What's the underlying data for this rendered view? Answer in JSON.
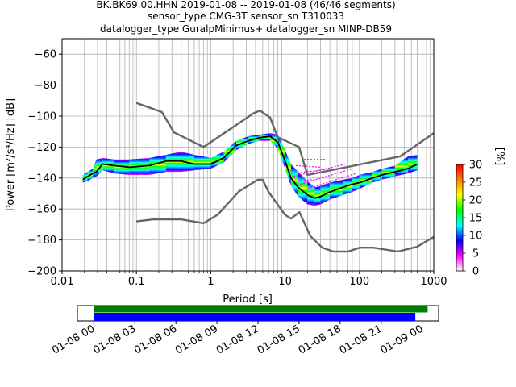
{
  "header": {
    "line1": "BK.BK69.00.HHN   2019-01-08 -- 2019-01-08  (46/46 segments)",
    "line2": "sensor_type CMG-3T sensor_sn T310033",
    "line3": "datalogger_type GuralpMinimus+ datalogger_sn MINP-DB59"
  },
  "chart_data": [
    {
      "type": "heatmap",
      "title": "",
      "xlabel": "Period [s]",
      "ylabel": "Power [m²/s⁴/Hz] [dB]",
      "xscale": "log",
      "xlim": [
        0.01,
        1000
      ],
      "ylim": [
        -200,
        -50
      ],
      "x_ticks": [
        0.01,
        0.1,
        1,
        10,
        100,
        1000
      ],
      "x_tick_labels": [
        "0.01",
        "0.1",
        "1",
        "10",
        "100",
        "1000"
      ],
      "y_ticks": [
        -200,
        -180,
        -160,
        -140,
        -120,
        -100,
        -80,
        -60
      ],
      "y_tick_labels": [
        "−200",
        "−180",
        "−160",
        "−140",
        "−120",
        "−100",
        "−80",
        "−60"
      ],
      "grid": true,
      "colorbar": {
        "label": "[%]",
        "range": [
          0,
          30
        ],
        "ticks": [
          0,
          5,
          10,
          15,
          20,
          25,
          30
        ],
        "colors": [
          "#ffffff",
          "#ff00ff",
          "#0000ff",
          "#00ffff",
          "#00ff00",
          "#ffff00",
          "#ff8000",
          "#ff0000"
        ]
      },
      "series": [
        {
          "name": "noise_model_high",
          "color": "#666666",
          "x": [
            0.1,
            0.22,
            0.32,
            0.8,
            3.8,
            4.6,
            6.3,
            7.9,
            15.4,
            20,
            354.8,
            1000
          ],
          "y": [
            -91.5,
            -97.4,
            -110.5,
            -120,
            -98,
            -96.5,
            -101,
            -113.5,
            -120,
            -138,
            -126,
            -111
          ]
        },
        {
          "name": "noise_model_low",
          "color": "#666666",
          "x": [
            0.1,
            0.17,
            0.4,
            0.8,
            1.24,
            2.4,
            4.3,
            5,
            6,
            10,
            12,
            15.6,
            21.9,
            31.6,
            45,
            70,
            101,
            154,
            328,
            600,
            1000
          ],
          "y": [
            -168,
            -166.7,
            -166.7,
            -169.2,
            -163.7,
            -148.6,
            -141.1,
            -141.1,
            -149,
            -163.8,
            -166.2,
            -162.1,
            -177.5,
            -185,
            -187.5,
            -187.5,
            -185,
            -185,
            -187.5,
            -184.4,
            -178
          ]
        },
        {
          "name": "mode",
          "color": "#000000",
          "x": [
            0.019,
            0.022,
            0.026,
            0.029,
            0.035,
            0.05,
            0.08,
            0.15,
            0.25,
            0.4,
            0.6,
            1.0,
            1.5,
            2.2,
            3.2,
            4.5,
            6.3,
            8,
            10,
            12,
            15,
            20,
            25,
            30,
            40,
            60,
            80,
            100,
            150,
            200,
            300,
            450,
            600
          ],
          "y": [
            -141,
            -139,
            -137,
            -136,
            -131,
            -132,
            -133,
            -132,
            -129,
            -129,
            -131,
            -131,
            -127,
            -119,
            -116,
            -114,
            -113,
            -117,
            -129,
            -140,
            -146,
            -151,
            -153,
            -152,
            -149,
            -146,
            -144,
            -143,
            -140,
            -138,
            -136,
            -134,
            -131
          ]
        }
      ],
      "heatmap_band": {
        "x": [
          0.019,
          0.022,
          0.026,
          0.029,
          0.035,
          0.05,
          0.08,
          0.15,
          0.25,
          0.4,
          0.6,
          1.0,
          1.5,
          2.2,
          3.2,
          4.5,
          6.3,
          8,
          10,
          12,
          15,
          20,
          25,
          30,
          40,
          60,
          80,
          100,
          150,
          200,
          300,
          450,
          600
        ],
        "y_high": [
          -138,
          -136,
          -134,
          -128,
          -127,
          -128,
          -128,
          -127,
          -125,
          -123,
          -125,
          -127,
          -123,
          -116,
          -113,
          -112,
          -111,
          -112,
          -122,
          -131,
          -136,
          -142,
          -146,
          -145,
          -143,
          -141,
          -140,
          -138,
          -136,
          -134,
          -132,
          -126,
          -125
        ],
        "y_low": [
          -143,
          -142,
          -140,
          -139,
          -135,
          -137,
          -138,
          -138,
          -136,
          -136,
          -135,
          -134,
          -130,
          -122,
          -118,
          -116,
          -116,
          -121,
          -134,
          -145,
          -152,
          -157,
          -158,
          -157,
          -154,
          -151,
          -149,
          -147,
          -143,
          -141,
          -139,
          -137,
          -135
        ]
      },
      "scatter_streaks": [
        {
          "x": [
            12,
            45
          ],
          "y": [
            -137,
            -134
          ]
        },
        {
          "x": [
            13,
            65
          ],
          "y": [
            -139,
            -131
          ]
        },
        {
          "x": [
            14,
            30
          ],
          "y": [
            -132,
            -133
          ]
        },
        {
          "x": [
            16,
            80
          ],
          "y": [
            -144,
            -134
          ]
        },
        {
          "x": [
            18,
            35
          ],
          "y": [
            -128,
            -128
          ]
        },
        {
          "x": [
            20,
            90
          ],
          "y": [
            -147,
            -137
          ]
        },
        {
          "x": [
            12,
            25
          ],
          "y": [
            -142,
            -141
          ]
        }
      ]
    },
    {
      "type": "bar",
      "title": "",
      "xlabel": "",
      "ylabel": "",
      "tick_labels": [
        "01-08 00",
        "01-08 03",
        "01-08 06",
        "01-08 09",
        "01-08 12",
        "01-08 15",
        "01-08 18",
        "01-08 21",
        "01-09 00"
      ],
      "tick_hours": [
        0,
        3,
        6,
        9,
        12,
        15,
        18,
        21,
        24
      ],
      "xlim_hours": [
        -1.2,
        25.2
      ],
      "series": [
        {
          "name": "data_coverage",
          "color": "#008000",
          "start_hours": 0,
          "end_hours": 24.4
        },
        {
          "name": "psd_segments",
          "color": "#0000ff",
          "start_hours": 0,
          "end_hours": 23.5
        }
      ]
    }
  ]
}
